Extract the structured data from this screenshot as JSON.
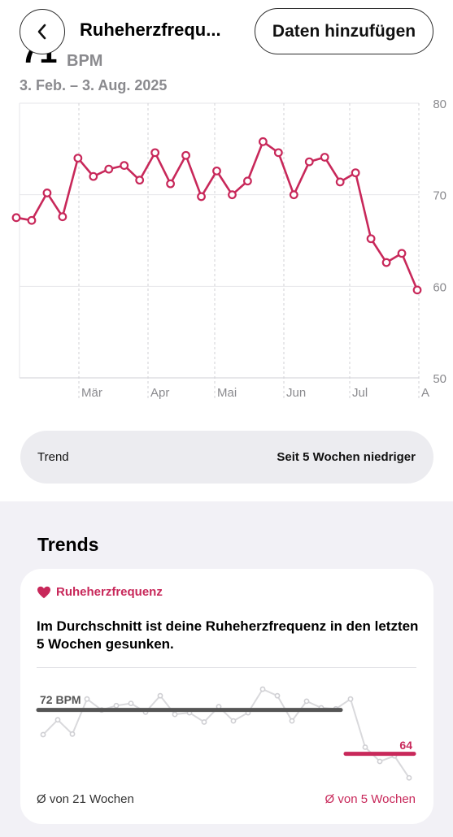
{
  "nav": {
    "title": "Ruheherzfrequ...",
    "add_label": "Daten hinzufügen"
  },
  "header": {
    "value": "71",
    "unit": "BPM",
    "date_range": "3. Feb. – 3. Aug. 2025"
  },
  "chart_data": {
    "type": "line",
    "y_ticks": [
      "80",
      "70",
      "60",
      "50"
    ],
    "ylim": [
      50,
      80
    ],
    "x_tick_labels": [
      "Mär",
      "Apr",
      "Mai",
      "Jun",
      "Jul",
      "A"
    ],
    "series": [
      {
        "values": [
          67.5,
          67.2,
          70.2,
          67.6,
          74.0,
          72.0,
          72.8,
          73.2,
          71.6,
          74.6,
          71.2,
          74.3,
          69.8,
          72.6,
          70.0,
          71.5,
          75.8,
          74.6,
          70.0,
          73.6,
          74.1,
          71.4,
          72.4,
          65.2,
          62.6,
          63.6,
          59.6
        ]
      }
    ],
    "color": "#c8285a"
  },
  "trend": {
    "label": "Trend",
    "value": "Seit 5 Wochen niedriger"
  },
  "trends_section": {
    "title": "Trends",
    "card": {
      "category": "Ruheherzfrequenz",
      "description": "Im Durchschnitt ist deine Ruheherzfrequenz in den letzten 5 Wochen gesunken.",
      "avg_long_label": "72 BPM",
      "avg_short_label": "64",
      "foot_left": "Ø von 21 Wochen",
      "foot_right": "Ø von 5 Wochen",
      "avg_long": 72,
      "avg_short": 64,
      "line_values": [
        67.5,
        70.2,
        67.6,
        74.0,
        72.0,
        72.8,
        73.2,
        71.6,
        74.6,
        71.2,
        71.5,
        69.8,
        72.6,
        70.0,
        71.5,
        75.8,
        74.6,
        70.0,
        73.6,
        72.4,
        72.2,
        74.0,
        65.2,
        62.6,
        63.6,
        59.6
      ]
    }
  },
  "colors": {
    "accent": "#c8285a",
    "avg_gray": "#555555"
  }
}
